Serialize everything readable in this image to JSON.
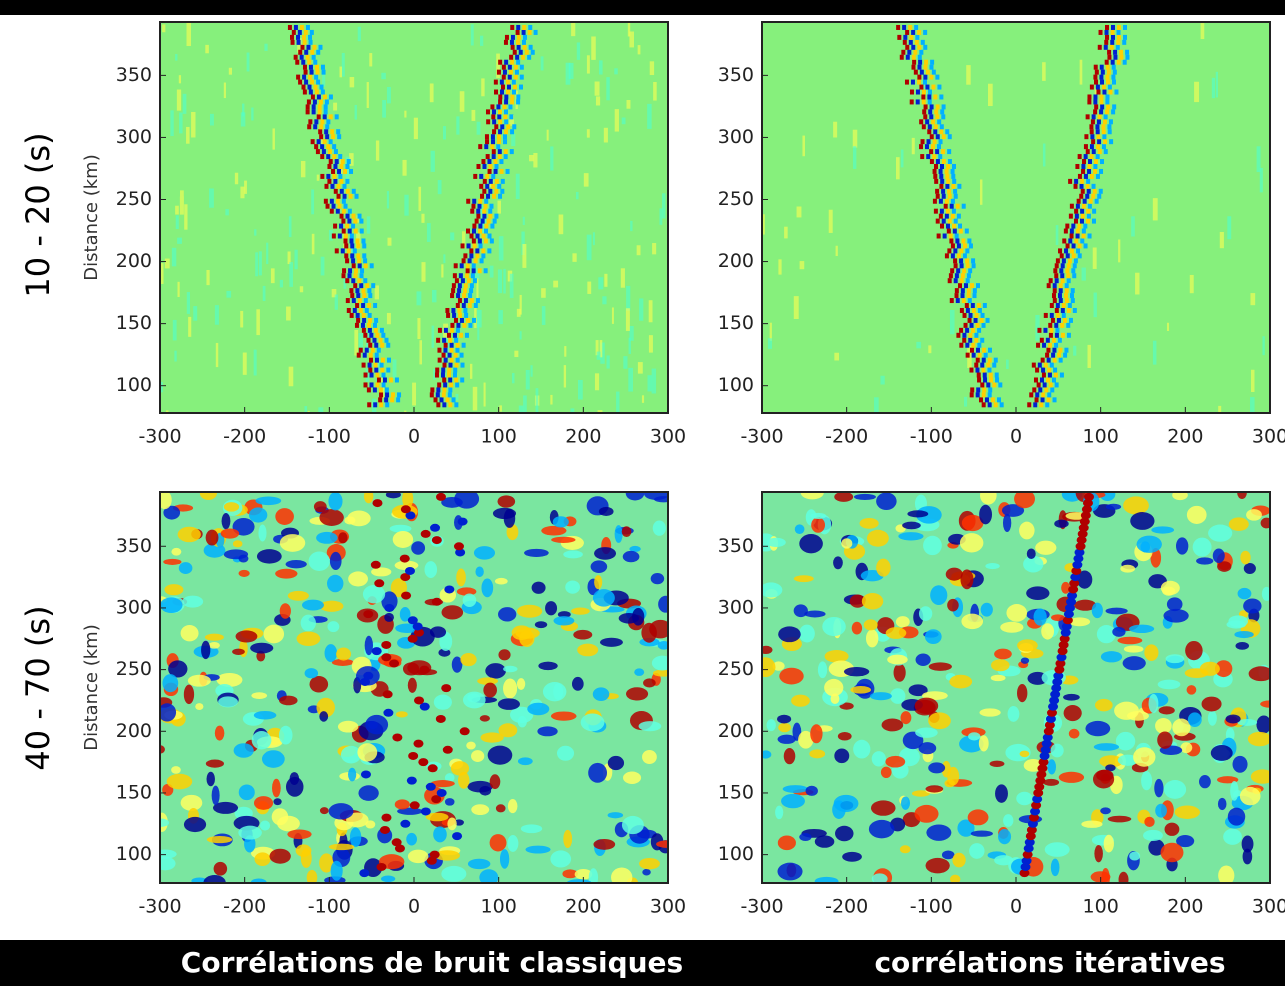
{
  "row_labels": [
    "10 - 20 (s)",
    "40 - 70 (s)"
  ],
  "column_labels": [
    "Corrélations de bruit classiques",
    "corrélations itératives"
  ],
  "chart_data": [
    {
      "type": "heatmap",
      "ylabel": "Distance (km)",
      "xlim": [
        -300,
        300
      ],
      "ylim": [
        78,
        393
      ],
      "xticks": [
        -300,
        -200,
        -100,
        0,
        100,
        200,
        300
      ],
      "yticks": [
        100,
        150,
        200,
        250,
        300,
        350
      ]
    },
    {
      "type": "heatmap",
      "xlim": [
        -300,
        300
      ],
      "ylim": [
        78,
        393
      ],
      "xticks": [
        -300,
        -200,
        -100,
        0,
        100,
        200,
        300
      ],
      "yticks": [
        100,
        150,
        200,
        250,
        300,
        350
      ]
    },
    {
      "type": "heatmap",
      "ylabel": "Distance (km)",
      "xlim": [
        -300,
        300
      ],
      "ylim": [
        77,
        394
      ],
      "xticks": [
        -300,
        -200,
        -100,
        0,
        100,
        200,
        300
      ],
      "yticks": [
        100,
        150,
        200,
        250,
        300,
        350
      ]
    },
    {
      "type": "heatmap",
      "xlim": [
        -300,
        300
      ],
      "ylim": [
        77,
        394
      ],
      "xticks": [
        -300,
        -200,
        -100,
        0,
        100,
        200,
        300
      ],
      "yticks": [
        100,
        150,
        200,
        250,
        300,
        350
      ]
    }
  ]
}
